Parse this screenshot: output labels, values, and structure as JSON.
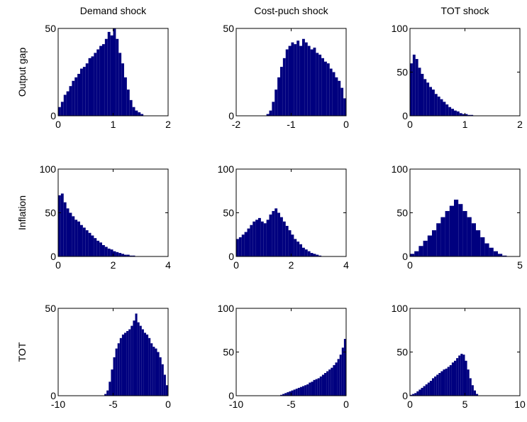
{
  "chart_data": [
    {
      "type": "histogram",
      "title": "Demand shock",
      "ylabel": "Output gap",
      "color": "#00007f",
      "bins": [
        0,
        0.05,
        0.1,
        0.15,
        0.2,
        0.25,
        0.3,
        0.35,
        0.4,
        0.45,
        0.5,
        0.55,
        0.6,
        0.65,
        0.7,
        0.75,
        0.8,
        0.85,
        0.9,
        0.95,
        1,
        1.05,
        1.1,
        1.15,
        1.2,
        1.25,
        1.3,
        1.35,
        1.4,
        1.45,
        1.5,
        1.55,
        1.6
      ],
      "values": [
        5,
        8,
        12,
        14,
        17,
        20,
        22,
        24,
        27,
        28,
        30,
        33,
        34,
        36,
        38,
        40,
        41,
        44,
        48,
        46,
        50,
        44,
        36,
        30,
        22,
        15,
        9,
        5,
        3,
        2,
        1,
        0
      ],
      "xlim": [
        0,
        2
      ],
      "xticks": [
        0,
        1,
        2
      ],
      "ylim": [
        0,
        50
      ],
      "yticks": [
        0,
        50
      ]
    },
    {
      "type": "histogram",
      "title": "Cost-puch shock",
      "color": "#00007f",
      "bins": [
        -1.5,
        -1.45,
        -1.4,
        -1.35,
        -1.3,
        -1.25,
        -1.2,
        -1.15,
        -1.1,
        -1.05,
        -1,
        -0.95,
        -0.9,
        -0.85,
        -0.8,
        -0.75,
        -0.7,
        -0.65,
        -0.6,
        -0.55,
        -0.5,
        -0.45,
        -0.4,
        -0.35,
        -0.3,
        -0.25,
        -0.2,
        -0.15,
        -0.1,
        -0.05,
        0
      ],
      "values": [
        0,
        1,
        3,
        8,
        15,
        22,
        28,
        33,
        38,
        40,
        42,
        41,
        43,
        40,
        44,
        42,
        40,
        38,
        39,
        36,
        35,
        33,
        31,
        30,
        27,
        25,
        22,
        20,
        16,
        10
      ],
      "xlim": [
        -2,
        0
      ],
      "xticks": [
        -2,
        -1,
        0
      ],
      "ylim": [
        0,
        50
      ],
      "yticks": [
        0,
        50
      ]
    },
    {
      "type": "histogram",
      "title": "TOT shock",
      "color": "#00007f",
      "bins": [
        0,
        0.05,
        0.1,
        0.15,
        0.2,
        0.25,
        0.3,
        0.35,
        0.4,
        0.45,
        0.5,
        0.55,
        0.6,
        0.65,
        0.7,
        0.75,
        0.8,
        0.85,
        0.9,
        0.95,
        1,
        1.05,
        1.1,
        1.15,
        1.2
      ],
      "values": [
        60,
        70,
        65,
        55,
        48,
        42,
        38,
        33,
        30,
        25,
        22,
        19,
        16,
        13,
        10,
        8,
        6,
        5,
        3,
        2,
        2,
        1,
        1,
        0
      ],
      "xlim": [
        0,
        2
      ],
      "xticks": [
        0,
        1,
        2
      ],
      "ylim": [
        0,
        100
      ],
      "yticks": [
        0,
        50,
        100
      ]
    },
    {
      "type": "histogram",
      "ylabel": "Inflation",
      "color": "#00007f",
      "bins": [
        0,
        0.1,
        0.2,
        0.3,
        0.4,
        0.5,
        0.6,
        0.7,
        0.8,
        0.9,
        1,
        1.1,
        1.2,
        1.3,
        1.4,
        1.5,
        1.6,
        1.7,
        1.8,
        1.9,
        2,
        2.1,
        2.2,
        2.3,
        2.4,
        2.5,
        2.6,
        2.7,
        2.8,
        2.9,
        3
      ],
      "values": [
        70,
        72,
        62,
        55,
        50,
        46,
        42,
        40,
        36,
        33,
        30,
        27,
        24,
        21,
        18,
        16,
        13,
        11,
        9,
        8,
        6,
        5,
        4,
        3,
        2,
        2,
        1,
        1,
        0,
        0
      ],
      "xlim": [
        0,
        4
      ],
      "xticks": [
        0,
        2,
        4
      ],
      "ylim": [
        0,
        100
      ],
      "yticks": [
        0,
        50,
        100
      ]
    },
    {
      "type": "histogram",
      "color": "#00007f",
      "bins": [
        0,
        0.1,
        0.2,
        0.3,
        0.4,
        0.5,
        0.6,
        0.7,
        0.8,
        0.9,
        1,
        1.1,
        1.2,
        1.3,
        1.4,
        1.5,
        1.6,
        1.7,
        1.8,
        1.9,
        2,
        2.1,
        2.2,
        2.3,
        2.4,
        2.5,
        2.6,
        2.7,
        2.8,
        2.9,
        3,
        3.1,
        3.2
      ],
      "values": [
        20,
        22,
        25,
        28,
        32,
        36,
        40,
        42,
        44,
        40,
        38,
        42,
        48,
        52,
        55,
        50,
        45,
        40,
        35,
        30,
        25,
        20,
        17,
        14,
        10,
        8,
        6,
        4,
        3,
        2,
        1,
        0
      ],
      "xlim": [
        0,
        4
      ],
      "xticks": [
        0,
        2,
        4
      ],
      "ylim": [
        0,
        100
      ],
      "yticks": [
        0,
        50,
        100
      ]
    },
    {
      "type": "histogram",
      "color": "#00007f",
      "bins": [
        0,
        0.2,
        0.4,
        0.6,
        0.8,
        1,
        1.2,
        1.4,
        1.6,
        1.8,
        2,
        2.2,
        2.4,
        2.6,
        2.8,
        3,
        3.2,
        3.4,
        3.6,
        3.8,
        4,
        4.2,
        4.4
      ],
      "values": [
        3,
        6,
        12,
        18,
        24,
        30,
        38,
        45,
        52,
        58,
        65,
        60,
        52,
        45,
        38,
        30,
        22,
        15,
        10,
        6,
        3,
        1
      ],
      "xlim": [
        0,
        5
      ],
      "xticks": [
        0,
        5
      ],
      "ylim": [
        0,
        100
      ],
      "yticks": [
        0,
        50,
        100
      ]
    },
    {
      "type": "histogram",
      "ylabel": "TOT",
      "color": "#00007f",
      "bins": [
        -6,
        -5.8,
        -5.6,
        -5.4,
        -5.2,
        -5,
        -4.8,
        -4.6,
        -4.4,
        -4.2,
        -4,
        -3.8,
        -3.6,
        -3.4,
        -3.2,
        -3,
        -2.8,
        -2.6,
        -2.4,
        -2.2,
        -2,
        -1.8,
        -1.6,
        -1.4,
        -1.2,
        -1,
        -0.8,
        -0.6,
        -0.4,
        -0.2,
        0
      ],
      "values": [
        0,
        1,
        3,
        8,
        15,
        22,
        27,
        30,
        33,
        35,
        36,
        37,
        38,
        40,
        43,
        47,
        42,
        40,
        38,
        36,
        35,
        33,
        30,
        28,
        27,
        25,
        22,
        18,
        12,
        6
      ],
      "xlim": [
        -10,
        0
      ],
      "xticks": [
        -10,
        -5,
        0
      ],
      "ylim": [
        0,
        50
      ],
      "yticks": [
        0,
        50
      ]
    },
    {
      "type": "histogram",
      "color": "#00007f",
      "bins": [
        -6,
        -5.8,
        -5.6,
        -5.4,
        -5.2,
        -5,
        -4.8,
        -4.6,
        -4.4,
        -4.2,
        -4,
        -3.8,
        -3.6,
        -3.4,
        -3.2,
        -3,
        -2.8,
        -2.6,
        -2.4,
        -2.2,
        -2,
        -1.8,
        -1.6,
        -1.4,
        -1.2,
        -1,
        -0.8,
        -0.6,
        -0.4,
        -0.2,
        0
      ],
      "values": [
        1,
        2,
        3,
        4,
        5,
        6,
        7,
        8,
        9,
        10,
        11,
        12,
        13,
        15,
        16,
        18,
        19,
        20,
        22,
        24,
        26,
        28,
        30,
        32,
        35,
        38,
        42,
        47,
        55,
        65
      ],
      "xlim": [
        -10,
        0
      ],
      "xticks": [
        -10,
        -5,
        0
      ],
      "ylim": [
        0,
        100
      ],
      "yticks": [
        0,
        50,
        100
      ]
    },
    {
      "type": "histogram",
      "color": "#00007f",
      "bins": [
        0,
        0.2,
        0.4,
        0.6,
        0.8,
        1,
        1.2,
        1.4,
        1.6,
        1.8,
        2,
        2.2,
        2.4,
        2.6,
        2.8,
        3,
        3.2,
        3.4,
        3.6,
        3.8,
        4,
        4.2,
        4.4,
        4.6,
        4.8,
        5,
        5.2,
        5.4,
        5.6,
        5.8,
        6,
        6.2,
        6.4
      ],
      "values": [
        1,
        2,
        3,
        5,
        7,
        9,
        11,
        13,
        15,
        17,
        20,
        22,
        24,
        26,
        28,
        30,
        31,
        33,
        35,
        38,
        40,
        43,
        46,
        48,
        47,
        40,
        30,
        20,
        12,
        6,
        2,
        0
      ],
      "xlim": [
        0,
        10
      ],
      "xticks": [
        0,
        5,
        10
      ],
      "ylim": [
        0,
        100
      ],
      "yticks": [
        0,
        50,
        100
      ]
    }
  ]
}
